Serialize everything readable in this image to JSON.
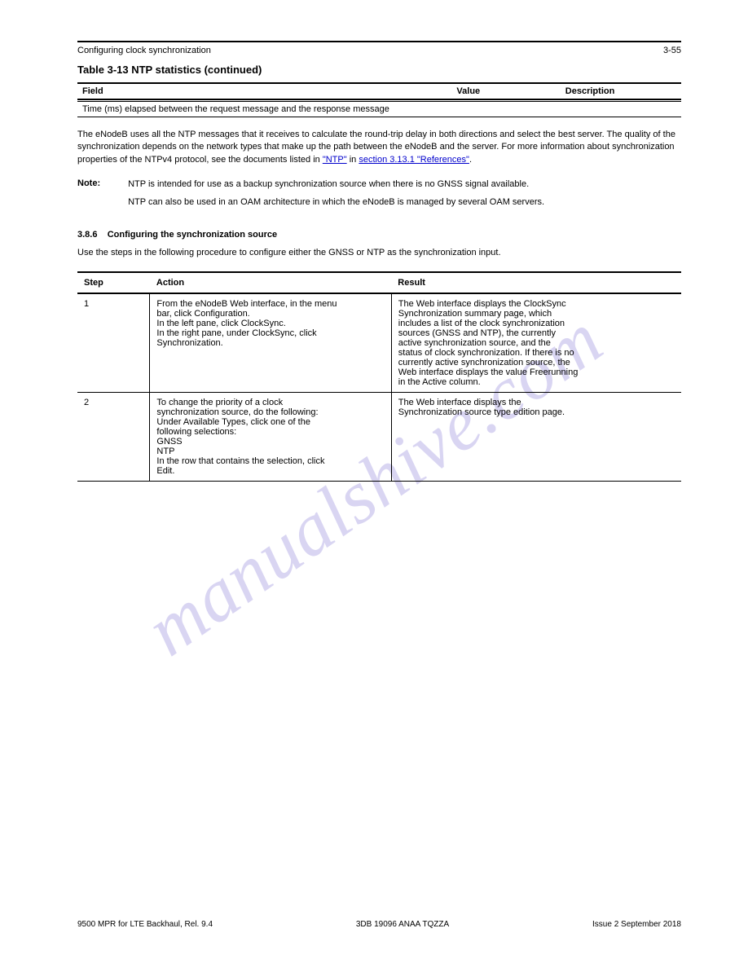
{
  "header": {
    "breadcrumb": "Configuring clock synchronization",
    "page_ref": "3-55"
  },
  "table1": {
    "title": "Table 3-13  NTP statistics (continued)",
    "columns": [
      "Field",
      "Value",
      "Description"
    ],
    "widths": [
      "62%",
      "18%",
      "20%"
    ],
    "rows": [
      [
        "Time (ms) elapsed between the request message and the response message",
        "",
        ""
      ]
    ]
  },
  "paragraph": "The eNodeB uses all the NTP messages that it receives to calculate the round-trip delay in both directions and select the best server. The quality of the synchronization depends on the network types that make up the path between the eNodeB and the server. For more information about synchronization properties of the NTPv4 protocol, see the documents listed in ",
  "link1_text": "\"NTP\"",
  "para_after_link": " in ",
  "link2_text": "section 3.13.1 \"References\"",
  "para_tail": ".",
  "note": {
    "label": "Note:",
    "line1": "NTP is intended for use as a backup synchronization source when there is no GNSS signal available.",
    "line2": "NTP can also be used in an OAM architecture in which the eNodeB is managed by several OAM servers."
  },
  "section_num": "3.8.6",
  "section_title": "Configuring the synchronization source",
  "section_body": "Use the steps in the following procedure to configure either the GNSS or NTP as the synchronization input.",
  "table2": {
    "columns": [
      "Step",
      "Action",
      "Result"
    ],
    "rows": [
      {
        "step": "1",
        "action_lines": [
          "From the eNodeB Web interface, in the menu",
          "bar, click Configuration.",
          "In the left pane, click ClockSync.",
          "In the right pane, under ClockSync, click",
          "Synchronization."
        ],
        "result_lines": [
          "The Web interface displays the ClockSync",
          "Synchronization summary page, which",
          "includes a list of the clock synchronization",
          "sources (GNSS and NTP), the currently",
          "active synchronization source, and the",
          "status of clock synchronization. If there is no",
          "currently active synchronization source, the",
          "Web interface displays the value Freerunning",
          "in the Active column."
        ]
      },
      {
        "step": "2",
        "action_lines": [
          "To change the priority of a clock",
          "synchronization source, do the following:",
          "Under Available Types, click one of the",
          "following selections:",
          "GNSS",
          "NTP",
          "In the row that contains the selection, click",
          "Edit."
        ],
        "result_lines": [
          "The Web interface displays the",
          "Synchronization source type edition page."
        ]
      }
    ]
  },
  "watermark": "manualshive.com",
  "footer": {
    "left": "9500 MPR for LTE Backhaul, Rel. 9.4",
    "center": "3DB 19096 ANAA TQZZA",
    "right": "Issue 2  September 2018"
  },
  "colors": {
    "text": "#000000",
    "link": "#0000cc",
    "border": "#000000",
    "background": "#ffffff",
    "watermark": "#8a7fd8"
  }
}
